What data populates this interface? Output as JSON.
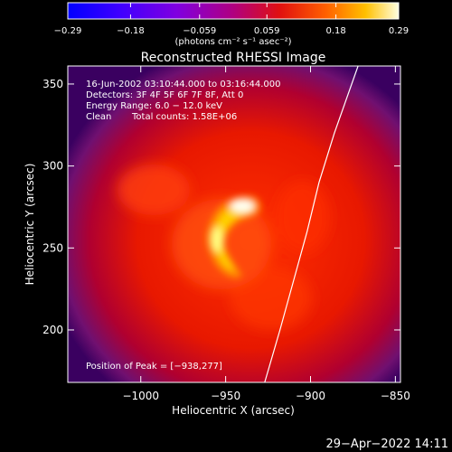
{
  "chart_data": {
    "type": "heatmap",
    "title": "Reconstructed RHESSI Image",
    "xlabel": "Heliocentric X (arcsec)",
    "ylabel": "Heliocentric Y (arcsec)",
    "xlim": [
      -1043,
      -847
    ],
    "ylim": [
      168,
      361
    ],
    "x_ticks": [
      -1000,
      -950,
      -900,
      -850
    ],
    "x_tick_labels": [
      "−1000",
      "−950",
      "−900",
      "−850"
    ],
    "y_ticks": [
      200,
      250,
      300,
      350
    ],
    "y_tick_labels": [
      "200",
      "250",
      "300",
      "350"
    ],
    "colorbar": {
      "min": -0.29,
      "max": 0.29,
      "ticks": [
        -0.29,
        -0.18,
        -0.059,
        0.059,
        0.18,
        0.29
      ],
      "tick_labels": [
        "−0.29",
        "−0.18",
        "−0.059",
        "0.059",
        "0.18",
        "0.29"
      ],
      "unit_label": "(photons cm⁻² s⁻¹ asec⁻²)"
    },
    "annotations": [
      "16-Jun-2002 03:10:44.000 to 03:16:44.000",
      "Detectors: 3F 4F 5F 6F 7F 8F, Att 0",
      "Energy Range: 6.0 − 12.0 keV",
      "Clean",
      "Total counts: 1.58E+06",
      "Position of Peak = [−938,277]"
    ],
    "peak_position": [
      -938,
      277
    ],
    "limb_curve": [
      [
        -927,
        168
      ],
      [
        -918,
        200
      ],
      [
        -910,
        230
      ],
      [
        -902,
        260
      ],
      [
        -895,
        290
      ],
      [
        -886,
        320
      ],
      [
        -872,
        361
      ]
    ],
    "grid": false
  },
  "footer_timestamp": "29−Apr−2022 14:11"
}
